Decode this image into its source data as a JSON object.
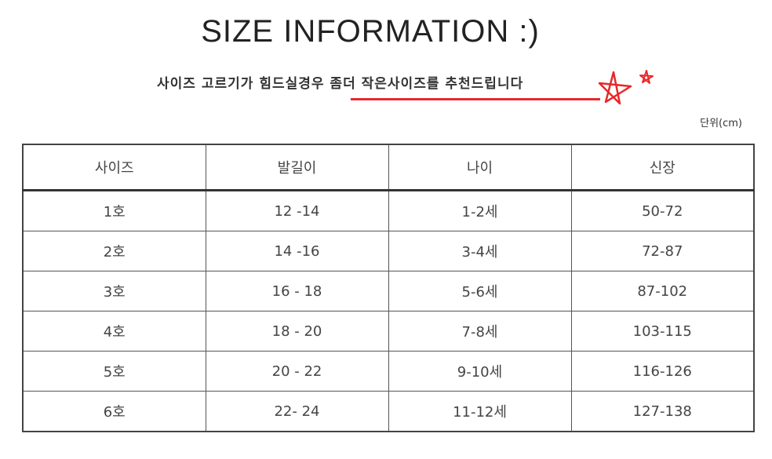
{
  "title": "SIZE INFORMATION :)",
  "note": "사이즈 고르기가 힘드실경우 좀더 작은사이즈를 추천드립니다",
  "accent_color": "#e8282a",
  "decoration_icons": [
    "star-icon",
    "star-icon"
  ],
  "unit": "단위(cm)",
  "table": {
    "headers": [
      "사이즈",
      "발길이",
      "나이",
      "신장"
    ],
    "rows": [
      [
        "1호",
        "12 -14",
        "1-2세",
        "50-72"
      ],
      [
        "2호",
        "14 -16",
        "3-4세",
        "72-87"
      ],
      [
        "3호",
        "16 - 18",
        "5-6세",
        "87-102"
      ],
      [
        "4호",
        "18 - 20",
        "7-8세",
        "103-115"
      ],
      [
        "5호",
        "20 - 22",
        "9-10세",
        "116-126"
      ],
      [
        "6호",
        "22- 24",
        "11-12세",
        "127-138"
      ]
    ]
  }
}
